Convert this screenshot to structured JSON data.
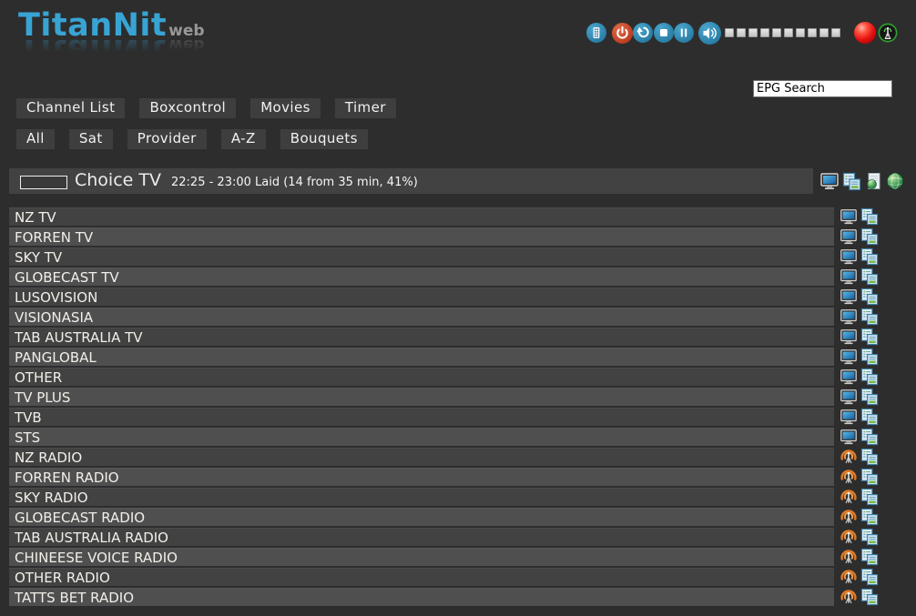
{
  "app": {
    "title": "TitanNit",
    "title_suffix": "web"
  },
  "colors": {
    "background": "#2d2d2d",
    "accent_blue": "#38a4d4",
    "icon_blue": "#2e84ab",
    "orange": "#ee7f10",
    "record_red": "#e61212",
    "signal_green": "#2f9e2f",
    "row_dark": "#424242",
    "row_light": "#4f4f4f"
  },
  "toolbar": {
    "volume_segments": 10,
    "icons": [
      "remote-icon",
      "power-icon",
      "undo-icon",
      "stop-icon",
      "pause-icon",
      "volume-icon"
    ],
    "status_icons": [
      "record-led",
      "signal-icon"
    ]
  },
  "search": {
    "value": "EPG Search"
  },
  "nav": {
    "primary": [
      {
        "label": "Channel List"
      },
      {
        "label": "Boxcontrol"
      },
      {
        "label": "Movies"
      },
      {
        "label": "Timer"
      }
    ],
    "filters": [
      {
        "label": "All"
      },
      {
        "label": "Sat"
      },
      {
        "label": "Provider"
      },
      {
        "label": "A-Z"
      },
      {
        "label": "Bouquets"
      }
    ]
  },
  "now_playing": {
    "channel": "Choice TV",
    "details": "22:25 - 23:00 Laid (14 from 35 min, 41%)",
    "progress_percent": 41,
    "icons": [
      "tv-icon",
      "epg-icon",
      "webpage-icon",
      "globe-icon"
    ]
  },
  "channels": [
    {
      "name": "NZ TV",
      "type": "tv"
    },
    {
      "name": "FORREN TV",
      "type": "tv"
    },
    {
      "name": "SKY TV",
      "type": "tv"
    },
    {
      "name": "GLOBECAST TV",
      "type": "tv"
    },
    {
      "name": "LUSOVISION",
      "type": "tv"
    },
    {
      "name": "VISIONASIA",
      "type": "tv"
    },
    {
      "name": "TAB AUSTRALIA TV",
      "type": "tv"
    },
    {
      "name": "PANGLOBAL",
      "type": "tv"
    },
    {
      "name": "OTHER",
      "type": "tv"
    },
    {
      "name": "TV PLUS",
      "type": "tv"
    },
    {
      "name": "TVB",
      "type": "tv"
    },
    {
      "name": "STS",
      "type": "tv"
    },
    {
      "name": "NZ RADIO",
      "type": "radio"
    },
    {
      "name": "FORREN RADIO",
      "type": "radio"
    },
    {
      "name": "SKY RADIO",
      "type": "radio"
    },
    {
      "name": "GLOBECAST RADIO",
      "type": "radio"
    },
    {
      "name": "TAB AUSTRALIA RADIO",
      "type": "radio"
    },
    {
      "name": "CHINEESE VOICE RADIO",
      "type": "radio"
    },
    {
      "name": "OTHER RADIO",
      "type": "radio"
    },
    {
      "name": "TATTS BET RADIO",
      "type": "radio"
    }
  ]
}
